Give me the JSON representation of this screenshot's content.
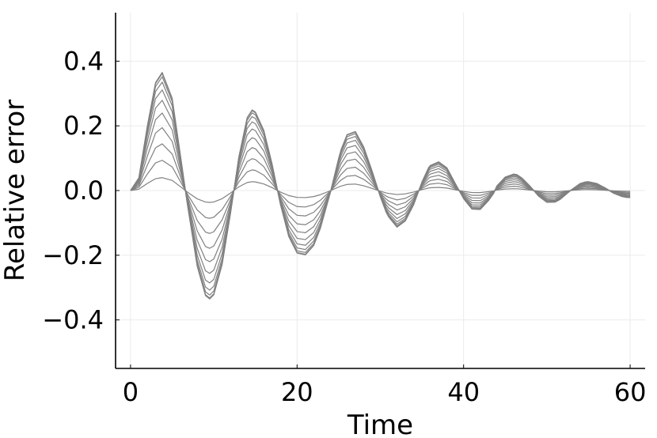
{
  "chart_data": {
    "type": "line",
    "title": "",
    "xlabel": "Time",
    "ylabel": "Relative error",
    "xlim": [
      -1.8,
      61.8
    ],
    "ylim": [
      -0.55,
      0.55
    ],
    "x_ticks": [
      0,
      20,
      40,
      60
    ],
    "x_tick_labels": [
      "0",
      "20",
      "40",
      "60"
    ],
    "y_ticks": [
      -0.4,
      -0.2,
      0.0,
      0.2,
      0.4
    ],
    "y_tick_labels": [
      "−0.4",
      "−0.2",
      "0.0",
      "0.2",
      "0.4"
    ],
    "grid": true,
    "legend": "none",
    "line_color": "#808080",
    "x": [
      0,
      1,
      2,
      3,
      3.8,
      5,
      6,
      6.8,
      8,
      9,
      9.5,
      10,
      11,
      12,
      13,
      14,
      14.6,
      15,
      16,
      17,
      18,
      19,
      20,
      21,
      22,
      22.8,
      24,
      25,
      25.3,
      26,
      27,
      28,
      29,
      30,
      30.7,
      31,
      32,
      33,
      34,
      35,
      35.8,
      36,
      37,
      38,
      39,
      40,
      41,
      42,
      43,
      43.6,
      44,
      45,
      46,
      46.4,
      47,
      48,
      49,
      50,
      51,
      51.6,
      52,
      53,
      54,
      54.6,
      55,
      56,
      57,
      58,
      59,
      59.5,
      60
    ],
    "series": [
      {
        "values": [
          0,
          0.0043,
          0.0216,
          0.0366,
          0.04,
          0.0313,
          0.0117,
          -0.0042,
          -0.0256,
          -0.0356,
          -0.0367,
          -0.0353,
          -0.0251,
          -0.0078,
          0.0113,
          0.0247,
          0.0273,
          0.0266,
          0.0204,
          0.009,
          -0.0047,
          -0.0156,
          -0.0212,
          -0.0218,
          -0.0186,
          -0.0128,
          -0.0006,
          0.011,
          0.014,
          0.0189,
          0.02,
          0.0148,
          0.0067,
          -0.0021,
          -0.0074,
          -0.009,
          -0.0124,
          -0.0103,
          -0.0048,
          0.0029,
          0.0078,
          0.0085,
          0.0097,
          0.0077,
          0.0024,
          -0.0028,
          -0.0063,
          -0.0064,
          -0.0034,
          -0.001,
          0.0016,
          0.0046,
          0.0056,
          0.0054,
          0.0043,
          0.0014,
          -0.0019,
          -0.004,
          -0.0039,
          -0.003,
          -0.002,
          0.0004,
          0.0024,
          0.0029,
          0.003,
          0.0024,
          0.0009,
          -0.0009,
          -0.002,
          -0.0023,
          -0.0024
        ]
      },
      {
        "values": [
          0,
          0.0101,
          0.0505,
          0.0855,
          0.0935,
          0.0731,
          0.0273,
          -0.0098,
          -0.0598,
          -0.0832,
          -0.0858,
          -0.0825,
          -0.0586,
          -0.0182,
          0.0264,
          0.0577,
          0.0638,
          0.0621,
          0.0477,
          0.021,
          -0.011,
          -0.0364,
          -0.0495,
          -0.0509,
          -0.0435,
          -0.0299,
          -0.0014,
          0.0257,
          0.0327,
          0.0442,
          0.0467,
          0.0346,
          0.0157,
          -0.0049,
          -0.0173,
          -0.021,
          -0.029,
          -0.0241,
          -0.0112,
          0.0068,
          0.0182,
          0.0199,
          0.0227,
          0.018,
          0.0056,
          -0.0065,
          -0.0147,
          -0.015,
          -0.0079,
          -0.0023,
          0.0037,
          0.0107,
          0.0131,
          0.0126,
          0.01,
          0.0033,
          -0.0044,
          -0.0093,
          -0.0091,
          -0.007,
          -0.0047,
          0.0009,
          0.0056,
          0.0068,
          0.007,
          0.0056,
          0.0021,
          -0.0021,
          -0.0047,
          -0.0054,
          -0.0056
        ]
      },
      {
        "values": [
          0,
          0.0156,
          0.078,
          0.132,
          0.1444,
          0.1129,
          0.0422,
          -0.0151,
          -0.0924,
          -0.1285,
          -0.1326,
          -0.1274,
          -0.0905,
          -0.0281,
          0.0408,
          0.0891,
          0.0985,
          0.0959,
          0.0737,
          0.0324,
          -0.017,
          -0.0562,
          -0.0765,
          -0.0786,
          -0.0672,
          -0.0462,
          -0.0022,
          0.0397,
          0.0505,
          0.0683,
          0.0721,
          0.0534,
          0.0242,
          -0.0076,
          -0.0267,
          -0.0324,
          -0.0448,
          -0.0372,
          -0.0173,
          0.0105,
          0.0281,
          0.0307,
          0.0351,
          0.0278,
          0.0086,
          -0.01,
          -0.0227,
          -0.0232,
          -0.0122,
          -0.0036,
          0.0057,
          0.0165,
          0.0202,
          0.0195,
          0.0154,
          0.0051,
          -0.0068,
          -0.0144,
          -0.0141,
          -0.0108,
          -0.0073,
          0.0014,
          0.0086,
          0.0105,
          0.0108,
          0.0086,
          0.0032,
          -0.0032,
          -0.0073,
          -0.0083,
          -0.0086
        ]
      },
      {
        "values": [
          0,
          0.021,
          0.105,
          0.1777,
          0.1944,
          0.152,
          0.0568,
          -0.0203,
          -0.1244,
          -0.173,
          -0.1785,
          -0.1715,
          -0.1218,
          -0.0378,
          0.0549,
          0.1199,
          0.1326,
          0.1291,
          0.0992,
          0.0436,
          -0.0229,
          -0.0757,
          -0.103,
          -0.1058,
          -0.0905,
          -0.0622,
          -0.003,
          0.0534,
          0.068,
          0.0919,
          0.0971,
          0.0719,
          0.0326,
          -0.0102,
          -0.0359,
          -0.0436,
          -0.0603,
          -0.0501,
          -0.0233,
          0.0141,
          0.0378,
          0.0413,
          0.0473,
          0.0374,
          0.0116,
          -0.0135,
          -0.0306,
          -0.0312,
          -0.0164,
          -0.0048,
          0.0077,
          0.0222,
          0.0272,
          0.0262,
          0.0207,
          0.0069,
          -0.0092,
          -0.0194,
          -0.019,
          -0.0145,
          -0.0098,
          0.0019,
          0.0116,
          0.0141,
          0.0145,
          0.0116,
          0.0043,
          -0.0043,
          -0.0098,
          -0.0112,
          -0.0116
        ]
      },
      {
        "values": [
          0,
          0.0259,
          0.1294,
          0.219,
          0.2396,
          0.1873,
          0.07,
          -0.025,
          -0.1533,
          -0.2132,
          -0.22,
          -0.2114,
          -0.1501,
          -0.0466,
          0.0677,
          0.1478,
          0.1634,
          0.1591,
          0.1223,
          0.0537,
          -0.0282,
          -0.0933,
          -0.1269,
          -0.1304,
          -0.1115,
          -0.0767,
          -0.0037,
          0.0658,
          0.0838,
          0.1133,
          0.1197,
          0.0886,
          0.0402,
          -0.0126,
          -0.0442,
          -0.0537,
          -0.0743,
          -0.0617,
          -0.0287,
          0.0174,
          0.0466,
          0.0509,
          0.0583,
          0.0461,
          0.0143,
          -0.0166,
          -0.0377,
          -0.0385,
          -0.0202,
          -0.0059,
          0.0095,
          0.0274,
          0.0335,
          0.0323,
          0.0255,
          0.0085,
          -0.0113,
          -0.0239,
          -0.0234,
          -0.0179,
          -0.0121,
          0.0023,
          0.0143,
          0.0174,
          0.0179,
          0.0143,
          0.0053,
          -0.0053,
          -0.0121,
          -0.0138,
          -0.0143
        ]
      },
      {
        "values": [
          0,
          0.0301,
          0.1506,
          0.2549,
          0.2789,
          0.218,
          0.0815,
          -0.0291,
          -0.1784,
          -0.2481,
          -0.256,
          -0.246,
          -0.1747,
          -0.0542,
          0.0788,
          0.172,
          0.1902,
          0.1852,
          0.1423,
          0.0625,
          -0.0328,
          -0.1086,
          -0.1477,
          -0.1517,
          -0.1298,
          -0.0892,
          -0.0043,
          0.0766,
          0.0976,
          0.1319,
          0.1393,
          0.1031,
          0.0467,
          -0.0147,
          -0.0515,
          -0.0625,
          -0.0865,
          -0.0718,
          -0.0335,
          0.0202,
          0.0543,
          0.0593,
          0.0678,
          0.0537,
          0.0166,
          -0.0193,
          -0.0439,
          -0.0448,
          -0.0235,
          -0.0069,
          0.011,
          0.0319,
          0.039,
          0.0376,
          0.0297,
          0.0099,
          -0.0132,
          -0.0279,
          -0.0273,
          -0.0209,
          -0.0141,
          0.0027,
          0.0166,
          0.0202,
          0.0209,
          0.0166,
          0.0062,
          -0.0062,
          -0.0141,
          -0.016,
          -0.0166
        ]
      },
      {
        "values": [
          0,
          0.0336,
          0.168,
          0.2843,
          0.3111,
          0.2432,
          0.0909,
          -0.0325,
          -0.199,
          -0.2768,
          -0.2856,
          -0.2744,
          -0.1949,
          -0.0605,
          0.0879,
          0.1919,
          0.2122,
          0.2066,
          0.1588,
          0.0697,
          -0.0366,
          -0.1211,
          -0.1648,
          -0.1693,
          -0.1448,
          -0.0995,
          -0.0048,
          0.0855,
          0.1088,
          0.1471,
          0.1554,
          0.115,
          0.0521,
          -0.0164,
          -0.0575,
          -0.0697,
          -0.0965,
          -0.0801,
          -0.0373,
          0.0226,
          0.0605,
          0.0661,
          0.0756,
          0.0599,
          0.0185,
          -0.0215,
          -0.0489,
          -0.05,
          -0.0262,
          -0.0077,
          0.0123,
          0.0356,
          0.0435,
          0.0419,
          0.0331,
          0.0111,
          -0.0147,
          -0.0311,
          -0.0305,
          -0.0233,
          -0.0157,
          0.003,
          0.0186,
          0.0226,
          0.0233,
          0.0186,
          0.0069,
          -0.0069,
          -0.0157,
          -0.0179,
          -0.0186
        ]
      },
      {
        "values": [
          0,
          0.0362,
          0.181,
          0.3064,
          0.3352,
          0.2621,
          0.0979,
          -0.035,
          -0.2144,
          -0.2982,
          -0.3077,
          -0.2957,
          -0.2099,
          -0.0652,
          0.0947,
          0.2067,
          0.2286,
          0.2226,
          0.1711,
          0.0752,
          -0.0394,
          -0.1305,
          -0.1776,
          -0.1824,
          -0.156,
          -0.1072,
          -0.0052,
          0.0921,
          0.1173,
          0.1585,
          0.1674,
          0.1239,
          0.0562,
          -0.0177,
          -0.0619,
          -0.0751,
          -0.104,
          -0.0863,
          -0.0402,
          0.0244,
          0.0652,
          0.0712,
          0.0815,
          0.0645,
          0.0199,
          -0.0232,
          -0.0527,
          -0.0538,
          -0.0283,
          -0.0083,
          0.0132,
          0.0383,
          0.0469,
          0.0452,
          0.0357,
          0.0119,
          -0.0159,
          -0.0335,
          -0.0328,
          -0.0251,
          -0.0169,
          0.0032,
          0.02,
          0.0244,
          0.0251,
          0.02,
          0.0074,
          -0.0074,
          -0.0169,
          -0.0193,
          -0.02
        ]
      },
      {
        "values": [
          0,
          0.038,
          0.1901,
          0.3216,
          0.3519,
          0.2751,
          0.1028,
          -0.0367,
          -0.2251,
          -0.3131,
          -0.323,
          -0.3104,
          -0.2204,
          -0.0684,
          0.0994,
          0.217,
          0.24,
          0.2337,
          0.1796,
          0.0789,
          -0.0414,
          -0.137,
          -0.1864,
          -0.1915,
          -0.1638,
          -0.1126,
          -0.0055,
          0.0967,
          0.1231,
          0.1664,
          0.1758,
          0.1301,
          0.0589,
          -0.0186,
          -0.065,
          -0.0788,
          -0.1091,
          -0.0906,
          -0.0422,
          0.0256,
          0.0685,
          0.0748,
          0.0855,
          0.0678,
          0.0209,
          -0.0243,
          -0.0553,
          -0.0565,
          -0.0297,
          -0.0087,
          0.0139,
          0.0402,
          0.0492,
          0.0474,
          0.0374,
          0.0125,
          -0.0166,
          -0.0352,
          -0.0345,
          -0.0263,
          -0.0178,
          0.0034,
          0.021,
          0.0256,
          0.0263,
          0.021,
          0.0078,
          -0.0078,
          -0.0178,
          -0.0202,
          -0.021
        ]
      },
      {
        "values": [
          0,
          0.0391,
          0.1955,
          0.3307,
          0.3619,
          0.2829,
          0.1057,
          -0.0377,
          -0.2315,
          -0.322,
          -0.3322,
          -0.3192,
          -0.2267,
          -0.0704,
          0.1022,
          0.2232,
          0.2468,
          0.2403,
          0.1847,
          0.0811,
          -0.0426,
          -0.1409,
          -0.1917,
          -0.1969,
          -0.1684,
          -0.1158,
          -0.0056,
          0.0994,
          0.1266,
          0.1711,
          0.1808,
          0.1338,
          0.0606,
          -0.0191,
          -0.0668,
          -0.081,
          -0.1122,
          -0.0932,
          -0.0434,
          0.0263,
          0.0704,
          0.0769,
          0.088,
          0.0697,
          0.0215,
          -0.025,
          -0.0569,
          -0.0581,
          -0.0305,
          -0.009,
          0.0143,
          0.0414,
          0.0506,
          0.0488,
          0.0385,
          0.0128,
          -0.0171,
          -0.0362,
          -0.0354,
          -0.0271,
          -0.0183,
          0.0035,
          0.0216,
          0.0263,
          0.0271,
          0.0216,
          0.0081,
          -0.0081,
          -0.0183,
          -0.0208,
          -0.0216
        ]
      },
      {
        "values": [
          0,
          0.0395,
          0.1973,
          0.3338,
          0.3653,
          0.2855,
          0.1067,
          -0.0381,
          -0.2336,
          -0.325,
          -0.3353,
          -0.3222,
          -0.2288,
          -0.071,
          0.1032,
          0.2253,
          0.2492,
          0.2426,
          0.1864,
          0.0819,
          -0.043,
          -0.1422,
          -0.1935,
          -0.1988,
          -0.17,
          -0.1169,
          -0.0056,
          0.1004,
          0.1278,
          0.1728,
          0.1825,
          0.1351,
          0.0612,
          -0.0193,
          -0.0675,
          -0.0818,
          -0.1133,
          -0.0941,
          -0.0438,
          0.0265,
          0.0711,
          0.0776,
          0.0888,
          0.0703,
          0.0217,
          -0.0253,
          -0.0575,
          -0.0586,
          -0.0308,
          -0.009,
          0.0144,
          0.0418,
          0.051,
          0.0492,
          0.0389,
          0.0129,
          -0.0173,
          -0.0365,
          -0.0358,
          -0.0273,
          -0.0184,
          0.0035,
          0.0218,
          0.0265,
          0.0273,
          0.0218,
          0.0081,
          -0.0081,
          -0.0184,
          -0.021,
          -0.0218
        ]
      }
    ]
  }
}
